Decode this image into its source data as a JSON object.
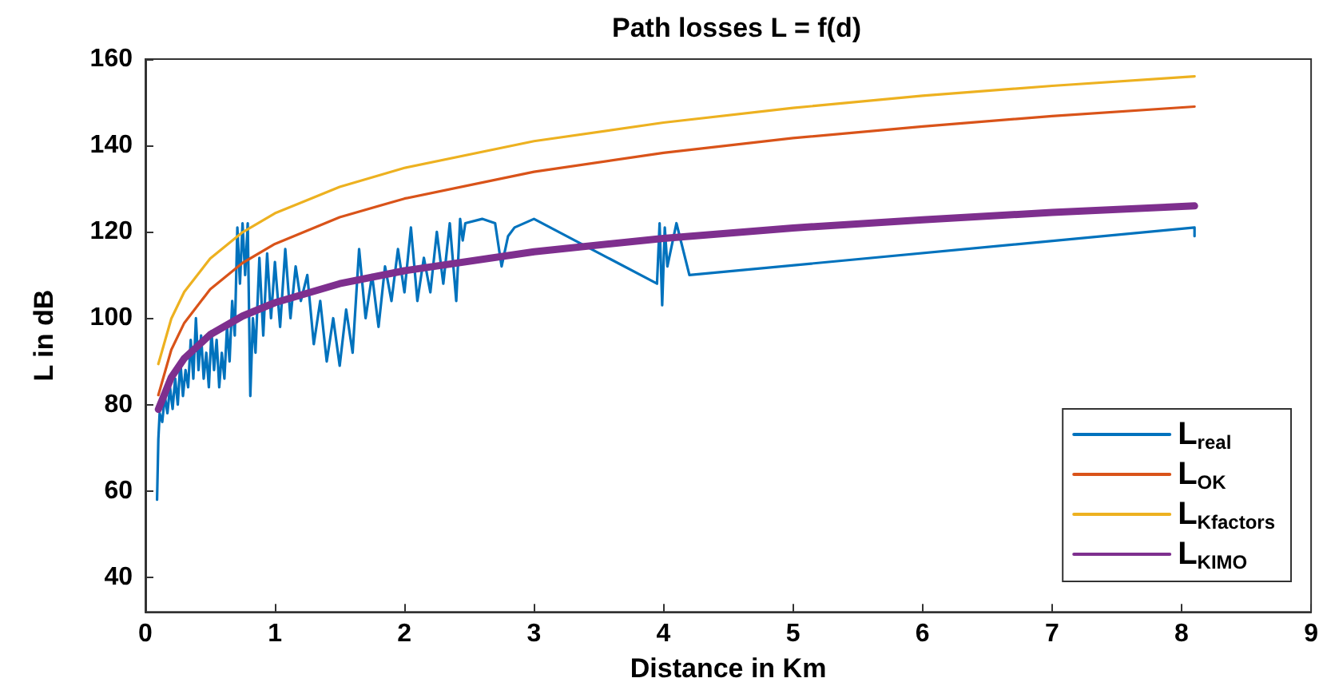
{
  "chart_data": {
    "type": "line",
    "title": "Path losses L = f(d)",
    "xlabel": "Distance in Km",
    "ylabel": "L in dB",
    "xlim": [
      0,
      9
    ],
    "xticks": [
      0,
      1,
      2,
      3,
      4,
      5,
      6,
      7,
      8,
      9
    ],
    "ylim": [
      32,
      160
    ],
    "yticks": [
      40,
      60,
      80,
      100,
      120,
      140,
      160
    ],
    "grid": false,
    "legend": "bottom right",
    "marker": "none",
    "line_style": "solid",
    "series": [
      {
        "name": "L$_{real}$",
        "color": "#0072bd",
        "x": [
          0.09,
          0.1,
          0.11,
          0.13,
          0.15,
          0.17,
          0.19,
          0.21,
          0.23,
          0.25,
          0.27,
          0.29,
          0.31,
          0.33,
          0.35,
          0.37,
          0.39,
          0.41,
          0.43,
          0.45,
          0.47,
          0.49,
          0.51,
          0.53,
          0.55,
          0.57,
          0.59,
          0.61,
          0.63,
          0.65,
          0.67,
          0.69,
          0.71,
          0.73,
          0.75,
          0.77,
          0.79,
          0.81,
          0.83,
          0.85,
          0.88,
          0.91,
          0.94,
          0.97,
          1.0,
          1.04,
          1.08,
          1.12,
          1.16,
          1.2,
          1.25,
          1.3,
          1.35,
          1.4,
          1.45,
          1.5,
          1.55,
          1.6,
          1.65,
          1.7,
          1.75,
          1.8,
          1.85,
          1.9,
          1.95,
          2.0,
          2.05,
          2.1,
          2.15,
          2.2,
          2.25,
          2.3,
          2.35,
          2.4,
          2.43,
          2.45,
          2.47,
          2.6,
          2.7,
          2.75,
          2.8,
          2.85,
          3.0,
          3.95,
          3.97,
          3.99,
          4.01,
          4.03,
          4.1,
          4.2,
          8.1,
          8.1
        ],
        "values": [
          58,
          72,
          78,
          76,
          82,
          78,
          84,
          79,
          86,
          80,
          90,
          82,
          88,
          84,
          95,
          86,
          100,
          88,
          96,
          86,
          92,
          84,
          97,
          88,
          95,
          84,
          92,
          86,
          98,
          90,
          104,
          96,
          121,
          108,
          122,
          110,
          122,
          82,
          100,
          92,
          114,
          96,
          115,
          100,
          113,
          98,
          116,
          100,
          112,
          104,
          110,
          94,
          104,
          90,
          100,
          89,
          102,
          92,
          116,
          100,
          110,
          98,
          112,
          104,
          116,
          106,
          121,
          104,
          114,
          106,
          120,
          108,
          122,
          104,
          123,
          118,
          122,
          123,
          122,
          112,
          119,
          121,
          123,
          108,
          122,
          103,
          121,
          112,
          122,
          110,
          121,
          119
        ]
      },
      {
        "name": "L$_{OK}$",
        "color": "#d95319",
        "x": [
          0.1,
          0.2,
          0.3,
          0.5,
          0.75,
          1,
          1.5,
          2,
          3,
          4,
          5,
          6,
          7,
          8.1
        ],
        "values": [
          82.2,
          92.7,
          98.9,
          106.7,
          112.8,
          117.2,
          123.4,
          127.7,
          133.9,
          138.3,
          141.7,
          144.4,
          146.8,
          149
        ]
      },
      {
        "name": "L$_{Kfactors}$",
        "color": "#edb120",
        "x": [
          0.1,
          0.2,
          0.3,
          0.5,
          0.75,
          1,
          1.5,
          2,
          3,
          4,
          5,
          6,
          7,
          8.1
        ],
        "values": [
          89.4,
          99.9,
          106.1,
          113.8,
          119.9,
          124.3,
          130.4,
          134.8,
          141,
          145.3,
          148.7,
          151.5,
          153.8,
          156
        ]
      },
      {
        "name": "L$_{KIMO}$",
        "color": "#7e2f8e",
        "x": [
          0.1,
          0.2,
          0.3,
          0.5,
          0.75,
          1,
          1.5,
          2,
          3,
          4,
          5,
          6,
          7,
          8.1
        ],
        "values": [
          78.9,
          86.3,
          90.7,
          96.2,
          100.5,
          103.6,
          108,
          111,
          115.4,
          118.5,
          120.9,
          122.8,
          124.5,
          126
        ]
      }
    ]
  }
}
